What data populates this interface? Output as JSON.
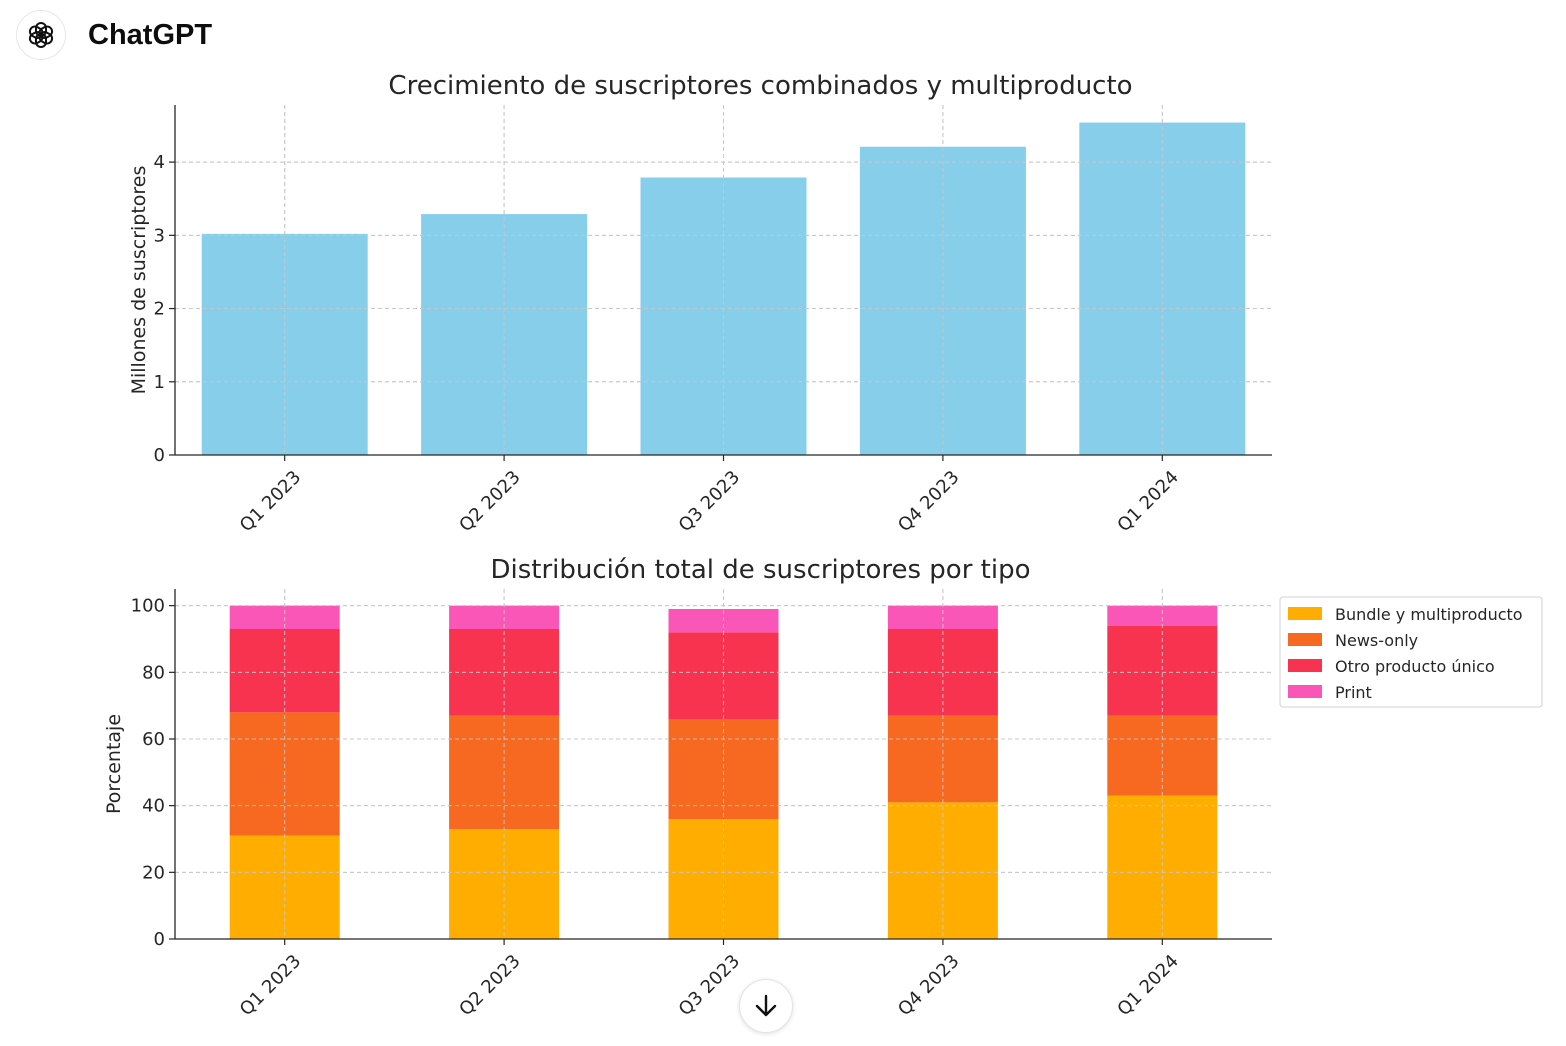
{
  "app": {
    "title": "ChatGPT",
    "logo_icon": "openai-logo-icon"
  },
  "scroll_button": {
    "icon": "arrow-down-icon"
  },
  "chart_data": [
    {
      "type": "bar",
      "title": "Crecimiento de suscriptores combinados y multiproducto",
      "xlabel": "",
      "ylabel": "Millones de suscriptores",
      "categories": [
        "Q1 2023",
        "Q2 2023",
        "Q3 2023",
        "Q4 2023",
        "Q1 2024"
      ],
      "values": [
        3.02,
        3.29,
        3.79,
        4.21,
        4.54
      ],
      "ylim": [
        0,
        4.78
      ],
      "yticks": [
        0,
        1,
        2,
        3,
        4
      ],
      "color": "#87ceeb",
      "grid": true
    },
    {
      "type": "bar",
      "stacked": true,
      "title": "Distribución total de suscriptores por tipo",
      "xlabel": "",
      "ylabel": "Porcentaje",
      "categories": [
        "Q1 2023",
        "Q2 2023",
        "Q3 2023",
        "Q4 2023",
        "Q1 2024"
      ],
      "series": [
        {
          "name": "Bundle y multiproducto",
          "color": "#ffae00",
          "values": [
            31,
            33,
            36,
            41,
            43
          ]
        },
        {
          "name": "News-only",
          "color": "#f76820",
          "values": [
            37,
            34,
            30,
            26,
            24
          ]
        },
        {
          "name": "Otro producto único",
          "color": "#f7334f",
          "values": [
            25,
            26,
            26,
            26,
            27
          ]
        },
        {
          "name": "Print",
          "color": "#fa56b8",
          "values": [
            7,
            7,
            7,
            7,
            6
          ]
        }
      ],
      "ylim": [
        0,
        105
      ],
      "yticks": [
        0,
        20,
        40,
        60,
        80,
        100
      ],
      "legend": "outside-right-top",
      "grid": true
    }
  ]
}
